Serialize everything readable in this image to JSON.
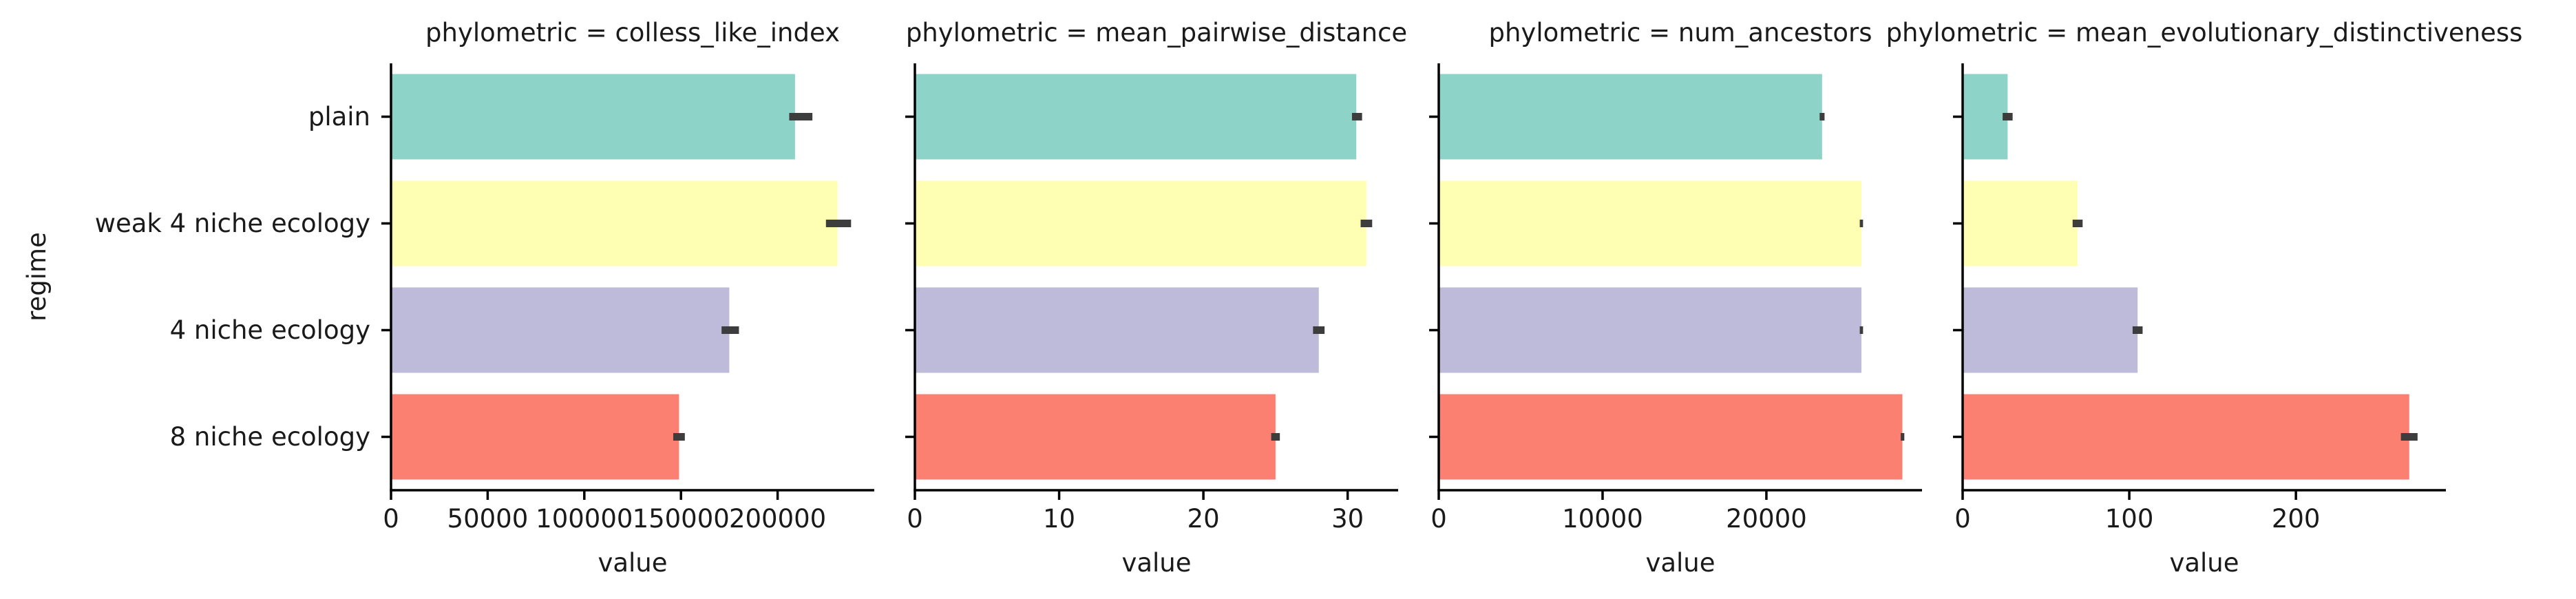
{
  "chart_data": {
    "type": "bar",
    "orientation": "horizontal",
    "y_axis_label": "regime",
    "categories": [
      "plain",
      "weak 4 niche ecology",
      "4 niche ecology",
      "8 niche ecology"
    ],
    "colors": [
      "#8dd3c7",
      "#ffffb3",
      "#bebada",
      "#fb8072"
    ],
    "panels": [
      {
        "title": "phylometric = colless_like_index",
        "xlabel": "value",
        "xlim": [
          0,
          250000
        ],
        "xticks": [
          0,
          50000,
          100000,
          150000,
          200000
        ],
        "xtick_labels": [
          "0",
          "50000",
          "100000",
          "150000",
          "200000"
        ],
        "values": [
          209000,
          231000,
          175000,
          149000
        ],
        "error_low": [
          206000,
          225000,
          171000,
          146000
        ],
        "error_high": [
          218000,
          238000,
          180000,
          152000
        ]
      },
      {
        "title": "phylometric = mean_pairwise_distance",
        "xlabel": "value",
        "xlim": [
          0,
          33.5
        ],
        "xticks": [
          0,
          10,
          20,
          30
        ],
        "xtick_labels": [
          "0",
          "10",
          "20",
          "30"
        ],
        "values": [
          30.6,
          31.3,
          28.0,
          25.0
        ],
        "error_low": [
          30.3,
          30.9,
          27.6,
          24.7
        ],
        "error_high": [
          31.0,
          31.7,
          28.4,
          25.3
        ]
      },
      {
        "title": "phylometric = num_ancestors",
        "xlabel": "value",
        "xlim": [
          0,
          29500
        ],
        "xticks": [
          0,
          10000,
          20000
        ],
        "xtick_labels": [
          "0",
          "10000",
          "20000"
        ],
        "values": [
          23400,
          25800,
          25800,
          28300
        ],
        "error_low": [
          23250,
          25700,
          25700,
          28200
        ],
        "error_high": [
          23550,
          25900,
          25900,
          28420
        ]
      },
      {
        "title": "phylometric = mean_evolutionary_distinctiveness",
        "xlabel": "value",
        "xlim": [
          0,
          290
        ],
        "xticks": [
          0,
          100,
          200
        ],
        "xtick_labels": [
          "0",
          "100",
          "200"
        ],
        "values": [
          27,
          69,
          105,
          268
        ],
        "error_low": [
          24,
          66,
          102,
          263
        ],
        "error_high": [
          30,
          72,
          108,
          273
        ]
      }
    ]
  }
}
